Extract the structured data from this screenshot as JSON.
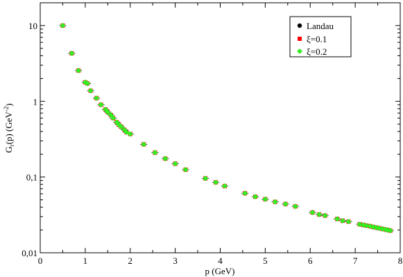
{
  "chart_data": {
    "type": "scatter",
    "title": "",
    "xlabel": "p (GeV)",
    "ylabel": "G_r(p) (GeV^-2)",
    "xlim": [
      0,
      8
    ],
    "ylim": [
      0.01,
      20
    ],
    "yscale": "log",
    "xticks": [
      "0",
      "1",
      "2",
      "3",
      "4",
      "5",
      "6",
      "7",
      "8"
    ],
    "yticks": [
      "0,01",
      "0,1",
      "1",
      "10"
    ],
    "legend_position": "top-right",
    "series": [
      {
        "name": "Landau",
        "marker": "circle",
        "color": "#000000",
        "x": [
          0.5,
          0.7,
          0.85,
          1.0,
          1.05,
          1.12,
          1.25,
          1.35,
          1.45,
          1.5,
          1.57,
          1.62,
          1.7,
          1.75,
          1.8,
          1.87,
          1.92,
          2.0,
          2.3,
          2.55,
          2.78,
          3.0,
          3.23,
          3.67,
          3.9,
          4.1,
          4.55,
          4.78,
          5.0,
          5.22,
          5.45,
          5.67,
          6.05,
          6.2,
          6.33,
          6.6,
          6.72,
          6.85,
          7.1,
          7.18,
          7.25,
          7.33,
          7.4,
          7.47,
          7.53,
          7.6,
          7.67,
          7.72,
          7.78
        ],
        "y": [
          10.0,
          4.3,
          2.55,
          1.78,
          1.72,
          1.38,
          1.1,
          0.9,
          0.78,
          0.72,
          0.66,
          0.6,
          0.53,
          0.49,
          0.46,
          0.42,
          0.39,
          0.37,
          0.27,
          0.21,
          0.175,
          0.15,
          0.125,
          0.096,
          0.085,
          0.076,
          0.061,
          0.055,
          0.051,
          0.047,
          0.044,
          0.041,
          0.034,
          0.032,
          0.031,
          0.028,
          0.0265,
          0.0258,
          0.0238,
          0.0233,
          0.0228,
          0.0224,
          0.0219,
          0.0215,
          0.0211,
          0.0207,
          0.0203,
          0.02,
          0.0196
        ]
      },
      {
        "name": "ξ=0.1",
        "marker": "square",
        "color": "#ff0000",
        "x": [
          0.5,
          0.7,
          0.85,
          1.0,
          1.05,
          1.12,
          1.25,
          1.35,
          1.45,
          1.5,
          1.57,
          1.62,
          1.7,
          1.75,
          1.8,
          1.87,
          1.92,
          2.0,
          2.3,
          2.55,
          2.78,
          3.0,
          3.23,
          3.67,
          3.9,
          4.1,
          4.55,
          4.78,
          5.0,
          5.22,
          5.45,
          5.67,
          6.05,
          6.2,
          6.33,
          6.6,
          6.72,
          6.85,
          7.1,
          7.18,
          7.25,
          7.33,
          7.4,
          7.47,
          7.53,
          7.6,
          7.67,
          7.72,
          7.78
        ],
        "y": [
          10.0,
          4.3,
          2.55,
          1.78,
          1.72,
          1.38,
          1.1,
          0.9,
          0.78,
          0.72,
          0.66,
          0.6,
          0.53,
          0.49,
          0.46,
          0.42,
          0.39,
          0.37,
          0.27,
          0.21,
          0.175,
          0.15,
          0.125,
          0.096,
          0.085,
          0.076,
          0.061,
          0.055,
          0.051,
          0.047,
          0.044,
          0.041,
          0.034,
          0.032,
          0.031,
          0.028,
          0.0265,
          0.0258,
          0.0238,
          0.0233,
          0.0228,
          0.0224,
          0.0219,
          0.0215,
          0.0211,
          0.0207,
          0.0203,
          0.02,
          0.0196
        ]
      },
      {
        "name": "ξ=0.2",
        "marker": "diamond",
        "color": "#33ee22",
        "x": [
          0.5,
          0.7,
          0.85,
          1.0,
          1.05,
          1.12,
          1.25,
          1.35,
          1.45,
          1.5,
          1.57,
          1.62,
          1.7,
          1.75,
          1.8,
          1.87,
          1.92,
          2.0,
          2.3,
          2.55,
          2.78,
          3.0,
          3.23,
          3.67,
          3.9,
          4.1,
          4.55,
          4.78,
          5.0,
          5.22,
          5.45,
          5.67,
          6.05,
          6.2,
          6.33,
          6.6,
          6.72,
          6.85,
          7.1,
          7.18,
          7.25,
          7.33,
          7.4,
          7.47,
          7.53,
          7.6,
          7.67,
          7.72,
          7.78
        ],
        "y": [
          10.0,
          4.3,
          2.55,
          1.78,
          1.72,
          1.38,
          1.1,
          0.9,
          0.78,
          0.72,
          0.66,
          0.6,
          0.53,
          0.49,
          0.46,
          0.42,
          0.39,
          0.37,
          0.27,
          0.21,
          0.175,
          0.15,
          0.125,
          0.096,
          0.085,
          0.076,
          0.061,
          0.055,
          0.051,
          0.047,
          0.044,
          0.041,
          0.034,
          0.032,
          0.031,
          0.028,
          0.0265,
          0.0258,
          0.0238,
          0.0233,
          0.0228,
          0.0224,
          0.0219,
          0.0215,
          0.0211,
          0.0207,
          0.0203,
          0.02,
          0.0196
        ]
      }
    ]
  }
}
